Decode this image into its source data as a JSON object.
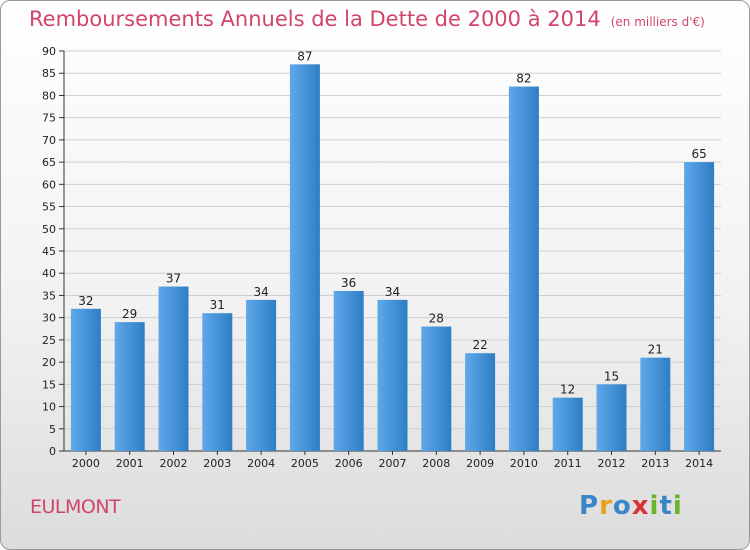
{
  "title": "Remboursements Annuels de la Dette de 2000 à 2014",
  "unit_note": "(en milliers d'€)",
  "commune": "EULMONT",
  "logo": {
    "text": "Proxiti",
    "letters": [
      {
        "ch": "P",
        "color": "#3a86c8"
      },
      {
        "ch": "r",
        "color": "#e8a21a"
      },
      {
        "ch": "o",
        "color": "#3a86c8"
      },
      {
        "ch": "x",
        "color": "#d93434"
      },
      {
        "ch": "i",
        "color": "#6ab42d"
      },
      {
        "ch": "t",
        "color": "#3a86c8"
      },
      {
        "ch": "i",
        "color": "#6ab42d"
      }
    ]
  },
  "colors": {
    "title": "#d2456a",
    "bar_light": "#5fa8ea",
    "bar_dark": "#2e7ec4",
    "grid": "#cfcfcf"
  },
  "chart_data": {
    "type": "bar",
    "categories": [
      "2000",
      "2001",
      "2002",
      "2003",
      "2004",
      "2005",
      "2006",
      "2007",
      "2008",
      "2009",
      "2010",
      "2011",
      "2012",
      "2013",
      "2014"
    ],
    "values": [
      32,
      29,
      37,
      31,
      34,
      87,
      36,
      34,
      28,
      22,
      82,
      12,
      15,
      21,
      65
    ],
    "title": "Remboursements Annuels de la Dette de 2000 à 2014",
    "xlabel": "",
    "ylabel": "",
    "ylim": [
      0,
      90
    ],
    "yticks": [
      0,
      5,
      10,
      15,
      20,
      25,
      30,
      35,
      40,
      45,
      50,
      55,
      60,
      65,
      70,
      75,
      80,
      85,
      90
    ],
    "grid": true,
    "legend": "none"
  }
}
